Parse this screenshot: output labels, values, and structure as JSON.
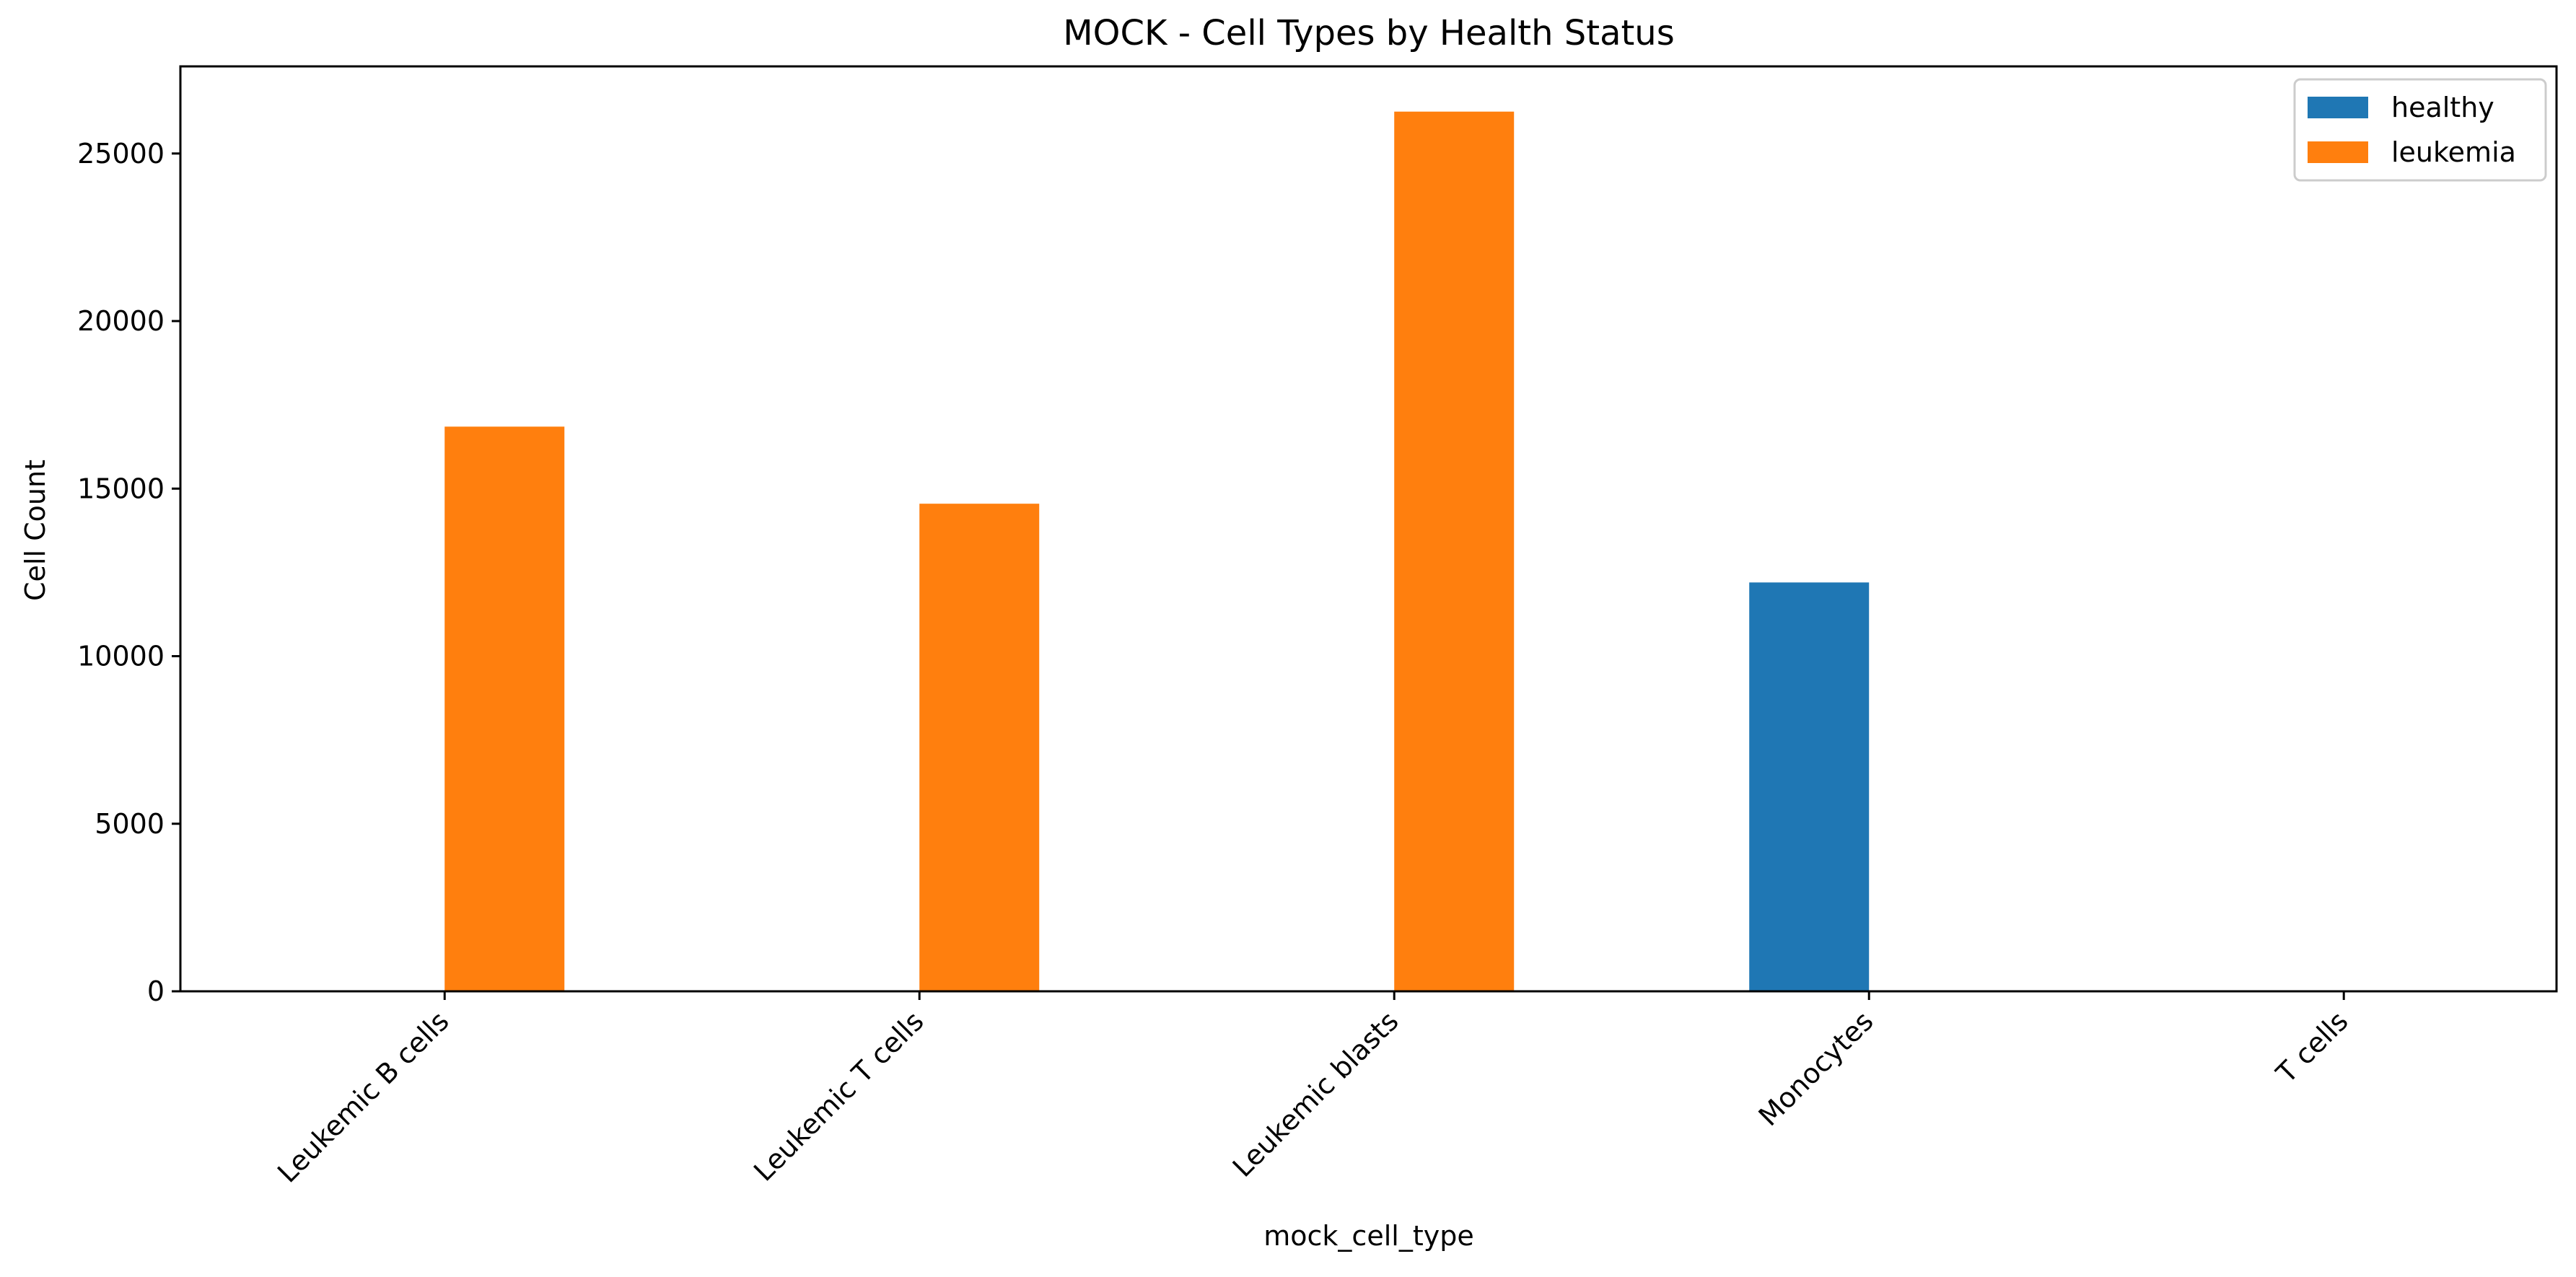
{
  "chart_data": {
    "type": "bar",
    "title": "MOCK - Cell Types by Health Status",
    "xlabel": "mock_cell_type",
    "ylabel": "Cell Count",
    "categories": [
      "Leukemic B cells",
      "Leukemic T cells",
      "Leukemic blasts",
      "Monocytes",
      "T cells"
    ],
    "series": [
      {
        "name": "healthy",
        "color": "#1f77b4",
        "values": [
          0,
          0,
          0,
          12200,
          0
        ]
      },
      {
        "name": "leukemia",
        "color": "#ff7f0e",
        "values": [
          16850,
          14550,
          26250,
          0,
          0
        ]
      }
    ],
    "ylim": [
      0,
      27600
    ],
    "yticks": [
      0,
      5000,
      10000,
      15000,
      20000,
      25000
    ],
    "ytick_labels": [
      "0",
      "5000",
      "10000",
      "15000",
      "20000",
      "25000"
    ],
    "grid": false,
    "legend": "top-right"
  }
}
